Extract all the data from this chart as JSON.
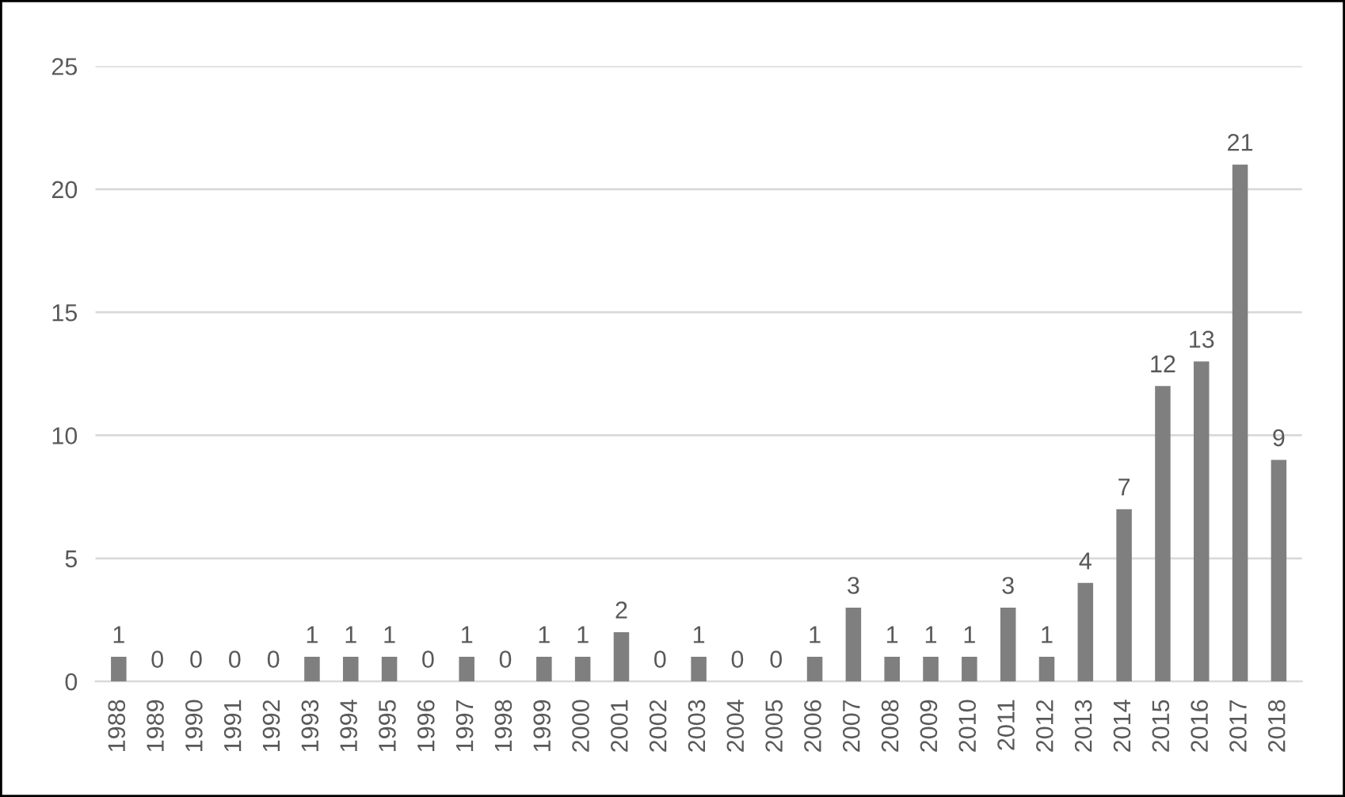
{
  "chart_data": {
    "type": "bar",
    "categories": [
      "1988",
      "1989",
      "1990",
      "1991",
      "1992",
      "1993",
      "1994",
      "1995",
      "1996",
      "1997",
      "1998",
      "1999",
      "2000",
      "2001",
      "2002",
      "2003",
      "2004",
      "2005",
      "2006",
      "2007",
      "2008",
      "2009",
      "2010",
      "2011",
      "2012",
      "2013",
      "2014",
      "2015",
      "2016",
      "2017",
      "2018"
    ],
    "values": [
      1,
      0,
      0,
      0,
      0,
      1,
      1,
      1,
      0,
      1,
      0,
      1,
      1,
      2,
      0,
      1,
      0,
      0,
      1,
      3,
      1,
      1,
      1,
      3,
      1,
      4,
      7,
      12,
      13,
      21,
      9
    ],
    "color": "#7f7f7f",
    "ylim": [
      0,
      25
    ],
    "yticks": [
      0,
      5,
      10,
      15,
      20,
      25
    ],
    "grid": "y",
    "data_labels": true,
    "legend": false
  }
}
